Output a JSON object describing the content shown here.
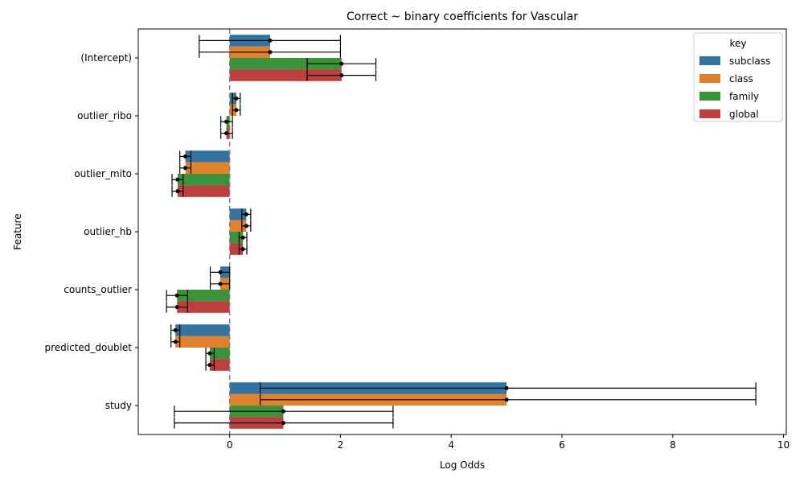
{
  "chart_data": {
    "type": "bar",
    "orientation": "horizontal",
    "title": "Correct ~ binary coefficients for Vascular",
    "xlabel": "Log Odds",
    "ylabel": "Feature",
    "xlim": [
      -1.65,
      10.05
    ],
    "xticks": [
      0,
      2,
      4,
      6,
      8,
      10
    ],
    "xtick_labels": [
      "0",
      "2",
      "4",
      "6",
      "8",
      "10"
    ],
    "reference_line_x": 0,
    "categories": [
      "(Intercept)",
      "outlier_ribo",
      "outlier_mito",
      "outlier_hb",
      "counts_outlier",
      "predicted_doublet",
      "study"
    ],
    "legend": {
      "title": "key",
      "placement": "top-right"
    },
    "series": [
      {
        "name": "subclass",
        "color": "#3274a1",
        "values": [
          0.73,
          0.12,
          -0.8,
          0.3,
          -0.17,
          -0.98,
          5.0
        ],
        "ci_low": [
          -0.55,
          0.05,
          -0.9,
          0.22,
          -0.35,
          -1.06,
          0.55
        ],
        "ci_high": [
          2.0,
          0.19,
          -0.7,
          0.38,
          0.0,
          -0.9,
          9.5
        ]
      },
      {
        "name": "class",
        "color": "#e1812c",
        "values": [
          0.73,
          0.12,
          -0.8,
          0.3,
          -0.17,
          -0.98,
          5.0
        ],
        "ci_low": [
          -0.55,
          0.05,
          -0.9,
          0.22,
          -0.35,
          -1.06,
          0.55
        ],
        "ci_high": [
          2.0,
          0.19,
          -0.7,
          0.38,
          0.0,
          -0.9,
          9.5
        ]
      },
      {
        "name": "family",
        "color": "#3a923a",
        "values": [
          2.02,
          -0.06,
          -0.94,
          0.24,
          -0.95,
          -0.36,
          0.97
        ],
        "ci_low": [
          1.4,
          -0.16,
          -1.04,
          0.17,
          -1.14,
          -0.43,
          -1.0
        ],
        "ci_high": [
          2.64,
          0.05,
          -0.84,
          0.31,
          -0.76,
          -0.28,
          2.95
        ]
      },
      {
        "name": "global",
        "color": "#c03d3e",
        "values": [
          2.02,
          -0.06,
          -0.94,
          0.24,
          -0.95,
          -0.36,
          0.97
        ],
        "ci_low": [
          1.4,
          -0.16,
          -1.04,
          0.17,
          -1.14,
          -0.43,
          -1.0
        ],
        "ci_high": [
          2.64,
          0.05,
          -0.84,
          0.31,
          -0.76,
          -0.28,
          2.95
        ]
      }
    ]
  }
}
